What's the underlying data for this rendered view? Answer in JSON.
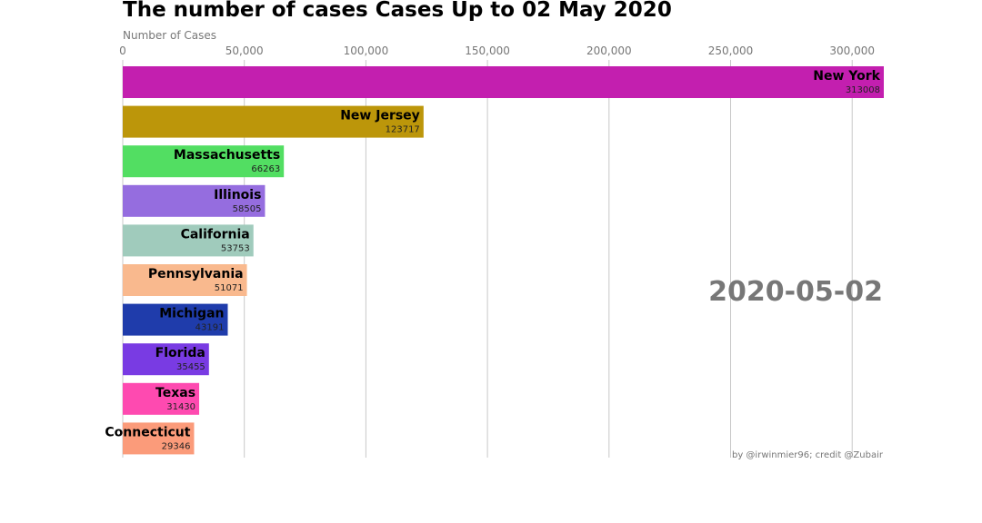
{
  "chart_data": {
    "type": "bar",
    "orientation": "horizontal",
    "title": "The number of cases Cases Up to 02 May 2020",
    "xlabel": "Number of Cases",
    "xlim": [
      0,
      313008
    ],
    "xticks": [
      0,
      50000,
      100000,
      150000,
      200000,
      250000,
      300000
    ],
    "xtick_labels": [
      "0",
      "50,000",
      "100,000",
      "150,000",
      "200,000",
      "250,000",
      "300,000"
    ],
    "grid": true,
    "date_label": "2020-05-02",
    "credit": "by @irwinmier96; credit @Zubair",
    "bars": [
      {
        "name": "New York",
        "value": 313008,
        "value_label": "313008",
        "color": "#c31faf"
      },
      {
        "name": "New Jersey",
        "value": 123717,
        "value_label": "123717",
        "color": "#bc960a"
      },
      {
        "name": "Massachusetts",
        "value": 66263,
        "value_label": "66263",
        "color": "#52de62"
      },
      {
        "name": "Illinois",
        "value": 58505,
        "value_label": "58505",
        "color": "#956ddf"
      },
      {
        "name": "California",
        "value": 53753,
        "value_label": "53753",
        "color": "#a0cbbc"
      },
      {
        "name": "Pennsylvania",
        "value": 51071,
        "value_label": "51071",
        "color": "#f9b98e"
      },
      {
        "name": "Michigan",
        "value": 43191,
        "value_label": "43191",
        "color": "#1f3cab"
      },
      {
        "name": "Florida",
        "value": 35455,
        "value_label": "35455",
        "color": "#793be3"
      },
      {
        "name": "Texas",
        "value": 31430,
        "value_label": "31430",
        "color": "#fe4ab0"
      },
      {
        "name": "Connecticut",
        "value": 29346,
        "value_label": "29346",
        "color": "#fb9b7a"
      }
    ]
  }
}
